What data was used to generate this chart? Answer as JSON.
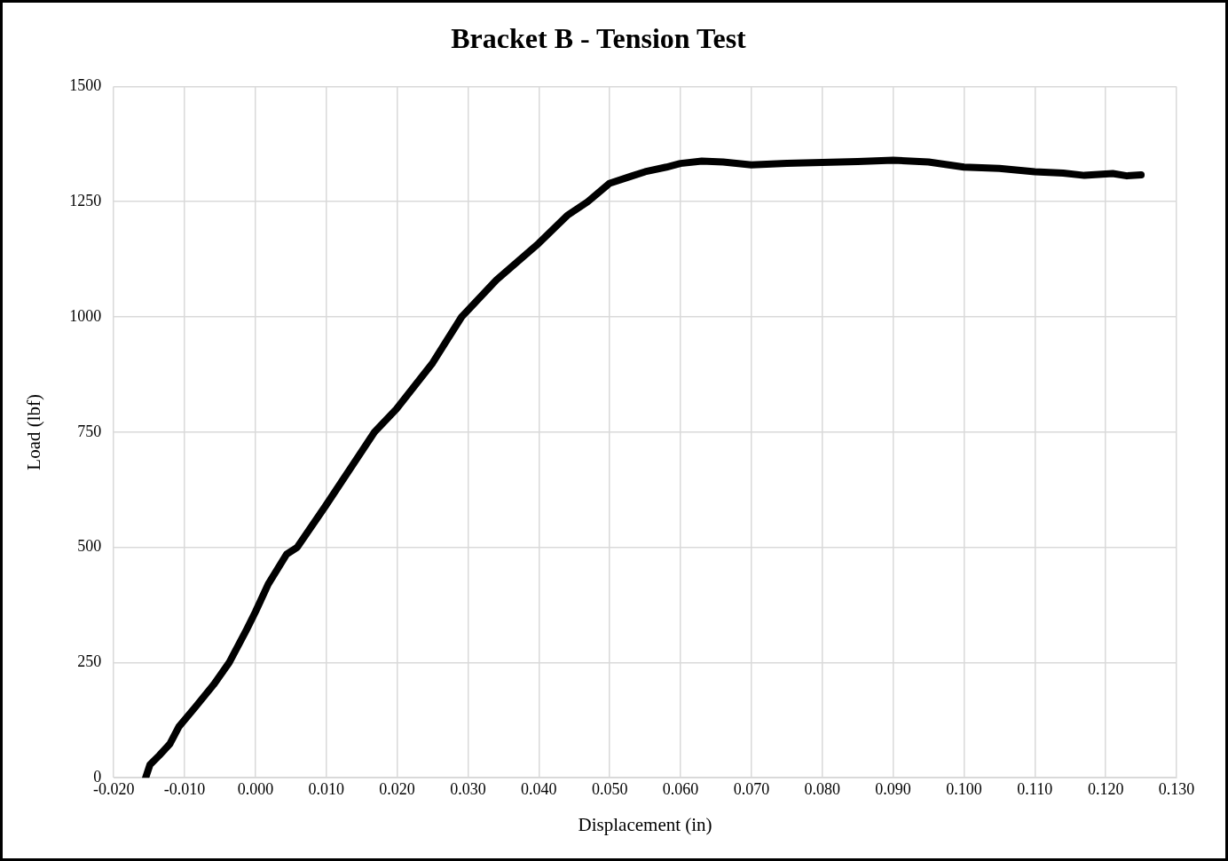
{
  "chart_data": {
    "type": "line",
    "title": "Bracket B - Tension Test",
    "xlabel": "Displacement (in)",
    "ylabel": "Load (lbf)",
    "series": [
      {
        "color": "#000000",
        "x": [
          -0.0155,
          -0.0149,
          -0.0136,
          -0.0121,
          -0.0108,
          -0.0085,
          -0.0059,
          -0.0037,
          -0.0013,
          0.0,
          0.0018,
          0.0044,
          0.0059,
          0.0099,
          0.0168,
          0.0199,
          0.025,
          0.0291,
          0.034,
          0.04,
          0.044,
          0.0469,
          0.05,
          0.053,
          0.055,
          0.058,
          0.06,
          0.063,
          0.066,
          0.07,
          0.075,
          0.08,
          0.085,
          0.09,
          0.095,
          0.1,
          0.105,
          0.11,
          0.114,
          0.117,
          0.121,
          0.123,
          0.125
        ],
        "values": [
          0,
          28,
          48,
          73,
          111,
          153,
          202,
          250,
          320,
          360,
          420,
          485,
          500,
          590,
          750,
          800,
          900,
          1000,
          1080,
          1160,
          1220,
          1250,
          1290,
          1305,
          1315,
          1325,
          1333,
          1338,
          1336,
          1330,
          1333,
          1335,
          1337,
          1340,
          1336,
          1325,
          1322,
          1315,
          1312,
          1307,
          1311,
          1306,
          1308
        ]
      }
    ],
    "xlim": [
      -0.02,
      0.13
    ],
    "xticks": [
      {
        "value": -0.02,
        "label": "-0.020"
      },
      {
        "value": -0.01,
        "label": "-0.010"
      },
      {
        "value": 0,
        "label": "0.000"
      },
      {
        "value": 0.01,
        "label": "0.010"
      },
      {
        "value": 0.02,
        "label": "0.020"
      },
      {
        "value": 0.03,
        "label": "0.030"
      },
      {
        "value": 0.04,
        "label": "0.040"
      },
      {
        "value": 0.05,
        "label": "0.050"
      },
      {
        "value": 0.06,
        "label": "0.060"
      },
      {
        "value": 0.07,
        "label": "0.070"
      },
      {
        "value": 0.08,
        "label": "0.080"
      },
      {
        "value": 0.09,
        "label": "0.090"
      },
      {
        "value": 0.1,
        "label": "0.100"
      },
      {
        "value": 0.11,
        "label": "0.110"
      },
      {
        "value": 0.12,
        "label": "0.120"
      },
      {
        "value": 0.13,
        "label": "0.130"
      }
    ],
    "ylim": [
      0,
      1500
    ],
    "yticks": [
      0,
      250,
      500,
      750,
      1000,
      1250,
      1500
    ],
    "grid": true,
    "legend": false,
    "marker": "none",
    "line_style": "solid"
  }
}
